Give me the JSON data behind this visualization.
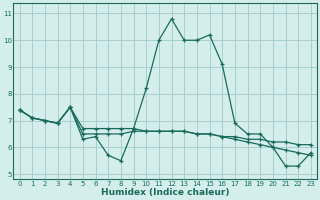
{
  "xlabel": "Humidex (Indice chaleur)",
  "ylabel": "",
  "xlim": [
    -0.5,
    23.5
  ],
  "ylim": [
    4.8,
    11.4
  ],
  "yticks": [
    5,
    6,
    7,
    8,
    9,
    10,
    11
  ],
  "xticks": [
    0,
    1,
    2,
    3,
    4,
    5,
    6,
    7,
    8,
    9,
    10,
    11,
    12,
    13,
    14,
    15,
    16,
    17,
    18,
    19,
    20,
    21,
    22,
    23
  ],
  "bg_color": "#d4eeec",
  "grid_color": "#aacfcc",
  "line_color": "#1a6b5a",
  "line1": [
    7.4,
    7.1,
    7.0,
    6.9,
    7.5,
    6.3,
    6.4,
    5.7,
    5.5,
    6.7,
    8.2,
    10.0,
    10.8,
    10.0,
    10.0,
    10.2,
    9.1,
    6.9,
    6.5,
    6.5,
    6.0,
    5.3,
    5.3,
    5.8
  ],
  "line2": [
    7.4,
    7.1,
    7.0,
    6.9,
    7.5,
    6.5,
    6.5,
    6.5,
    6.5,
    6.6,
    6.6,
    6.6,
    6.6,
    6.6,
    6.5,
    6.5,
    6.4,
    6.4,
    6.3,
    6.3,
    6.2,
    6.2,
    6.1,
    6.1
  ],
  "line3": [
    7.4,
    7.1,
    7.0,
    6.9,
    7.5,
    6.7,
    6.7,
    6.7,
    6.7,
    6.7,
    6.6,
    6.6,
    6.6,
    6.6,
    6.5,
    6.5,
    6.4,
    6.3,
    6.2,
    6.1,
    6.0,
    5.9,
    5.8,
    5.7
  ]
}
